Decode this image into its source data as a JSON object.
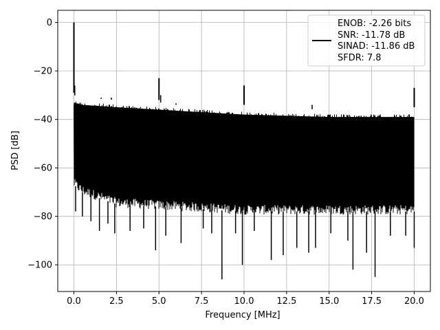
{
  "chart_data": {
    "type": "line",
    "title": "",
    "xlabel": "Frequency [MHz]",
    "ylabel": "PSD [dB]",
    "xlim": [
      -0.95,
      20.95
    ],
    "ylim": [
      -111,
      5
    ],
    "grid": true,
    "legend_position": "top-right",
    "line_color": "#000000",
    "x_ticks": [
      0.0,
      2.5,
      5.0,
      7.5,
      10.0,
      12.5,
      15.0,
      17.5,
      20.0
    ],
    "x_tick_labels": [
      "0.0",
      "2.5",
      "5.0",
      "7.5",
      "10.0",
      "12.5",
      "15.0",
      "17.5",
      "20.0"
    ],
    "y_ticks": [
      0,
      -20,
      -40,
      -60,
      -80,
      -100
    ],
    "y_tick_labels": [
      "0",
      "−20",
      "−40",
      "−60",
      "−80",
      "−100"
    ],
    "series": [
      {
        "legend": [
          "ENOB: -2.26 bits",
          "SNR: -11.78 dB",
          "SINAD: -11.86 dB",
          "SFDR: 7.8"
        ],
        "noise_floor": {
          "x": [
            0,
            0.5,
            2.5,
            5,
            7.5,
            10,
            12.5,
            15,
            17.5,
            20
          ],
          "upper": [
            -32,
            -33,
            -34,
            -35,
            -36,
            -37,
            -37.5,
            -38,
            -38,
            -38
          ],
          "lower": [
            -67,
            -70,
            -75,
            -76,
            -77,
            -78,
            -78,
            -78,
            -78,
            -78
          ]
        },
        "peaks": [
          {
            "x": 0.0,
            "y": 0
          },
          {
            "x": 5.0,
            "y": -23
          },
          {
            "x": 10.0,
            "y": -26
          },
          {
            "x": 20.0,
            "y": -27
          }
        ],
        "dips": [
          {
            "x": 0.1,
            "y": -78
          },
          {
            "x": 0.5,
            "y": -80
          },
          {
            "x": 1.0,
            "y": -82
          },
          {
            "x": 1.5,
            "y": -86
          },
          {
            "x": 2.0,
            "y": -83
          },
          {
            "x": 2.4,
            "y": -87
          },
          {
            "x": 3.3,
            "y": -86
          },
          {
            "x": 4.1,
            "y": -85
          },
          {
            "x": 4.8,
            "y": -94
          },
          {
            "x": 5.4,
            "y": -88
          },
          {
            "x": 6.3,
            "y": -91
          },
          {
            "x": 7.6,
            "y": -85
          },
          {
            "x": 8.1,
            "y": -87
          },
          {
            "x": 8.7,
            "y": -106
          },
          {
            "x": 9.5,
            "y": -87
          },
          {
            "x": 9.9,
            "y": -100
          },
          {
            "x": 10.6,
            "y": -86
          },
          {
            "x": 11.6,
            "y": -98
          },
          {
            "x": 12.3,
            "y": -96
          },
          {
            "x": 13.1,
            "y": -93
          },
          {
            "x": 13.8,
            "y": -95
          },
          {
            "x": 14.2,
            "y": -93
          },
          {
            "x": 15.1,
            "y": -87
          },
          {
            "x": 16.1,
            "y": -90
          },
          {
            "x": 16.4,
            "y": -102
          },
          {
            "x": 17.2,
            "y": -95
          },
          {
            "x": 17.7,
            "y": -105
          },
          {
            "x": 18.6,
            "y": -88
          },
          {
            "x": 19.5,
            "y": -88
          },
          {
            "x": 20.0,
            "y": -93
          }
        ],
        "spurs_up": [
          {
            "x": 0.05,
            "y": -26
          },
          {
            "x": 1.6,
            "y": -31
          },
          {
            "x": 2.2,
            "y": -31
          },
          {
            "x": 5.1,
            "y": -30
          },
          {
            "x": 6.0,
            "y": -34
          },
          {
            "x": 14.0,
            "y": -34
          }
        ]
      }
    ]
  }
}
